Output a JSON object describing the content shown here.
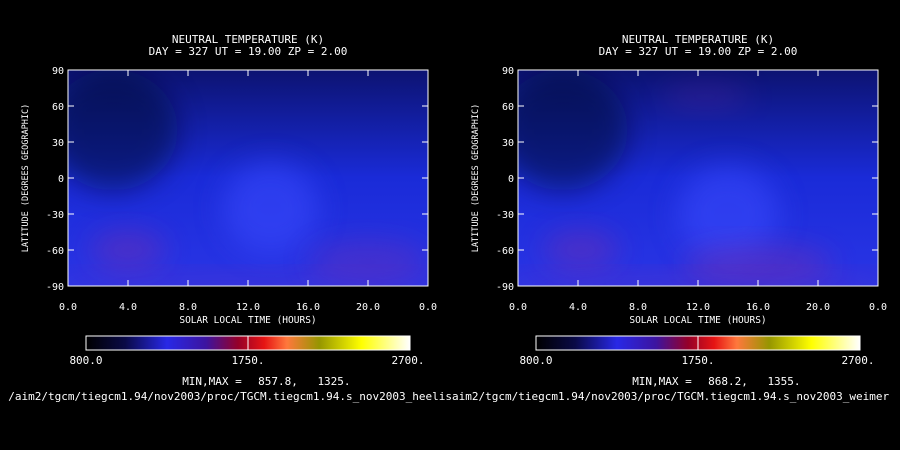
{
  "colors": {
    "background": "#000000",
    "text": "#ffffff"
  },
  "chart_data": [
    {
      "type": "heatmap",
      "title": "NEUTRAL TEMPERATURE (K)",
      "subtitle": "DAY = 327  UT = 19.00  ZP =    2.00",
      "xlabel": "SOLAR LOCAL TIME (HOURS)",
      "ylabel": "LATITUDE (DEGREES GEOGRAPHIC)",
      "x_ticks": [
        "0.0",
        "4.0",
        "8.0",
        "12.0",
        "16.0",
        "20.0",
        "0.0"
      ],
      "y_ticks": [
        "90",
        "60",
        "30",
        "0",
        "-30",
        "-60",
        "-90"
      ],
      "xlim": [
        0,
        24
      ],
      "ylim": [
        -90,
        90
      ],
      "colorbar": {
        "min_label": "800.0",
        "mid_label": "1750.",
        "max_label": "2700.",
        "range": [
          800,
          2700
        ]
      },
      "minmax_label": "MIN,MAX =",
      "min_value": "857.8,",
      "max_value": "1325.",
      "min": 857.8,
      "max": 1325,
      "filepath": "/aim2/tgcm/tiegcm1.94/nov2003/proc/TGCM.tiegcm1.94.s_nov2003_heelis",
      "field_blobs": [
        {
          "slt": 13.5,
          "lat": -25,
          "slt_spread": 3.2,
          "lat_spread": 38,
          "strength": 0.55
        },
        {
          "slt": 4.0,
          "lat": -60,
          "slt_spread": 2.5,
          "lat_spread": 16,
          "strength": 0.45
        },
        {
          "slt": 20.0,
          "lat": -70,
          "slt_spread": 4.0,
          "lat_spread": 18,
          "strength": 0.35
        },
        {
          "slt": 12.0,
          "lat": -88,
          "slt_spread": 14.0,
          "lat_spread": 8,
          "strength": 0.25
        }
      ]
    },
    {
      "type": "heatmap",
      "title": "NEUTRAL TEMPERATURE (K)",
      "subtitle": "DAY = 327  UT = 19.00  ZP =    2.00",
      "xlabel": "SOLAR LOCAL TIME (HOURS)",
      "ylabel": "LATITUDE (DEGREES GEOGRAPHIC)",
      "x_ticks": [
        "0.0",
        "4.0",
        "8.0",
        "12.0",
        "16.0",
        "20.0",
        "0.0"
      ],
      "y_ticks": [
        "90",
        "60",
        "30",
        "0",
        "-30",
        "-60",
        "-90"
      ],
      "xlim": [
        0,
        24
      ],
      "ylim": [
        -90,
        90
      ],
      "colorbar": {
        "min_label": "800.0",
        "mid_label": "1750.",
        "max_label": "2700.",
        "range": [
          800,
          2700
        ]
      },
      "minmax_label": "MIN,MAX =",
      "min_value": "868.2,",
      "max_value": "1355.",
      "min": 868.2,
      "max": 1355,
      "filepath": "aim2/tgcm/tiegcm1.94/nov2003/proc/TGCM.tiegcm1.94.s_nov2003_weimer",
      "field_blobs": [
        {
          "slt": 14.0,
          "lat": -30,
          "slt_spread": 3.4,
          "lat_spread": 40,
          "strength": 0.55
        },
        {
          "slt": 4.2,
          "lat": -60,
          "slt_spread": 2.5,
          "lat_spread": 16,
          "strength": 0.45
        },
        {
          "slt": 16.0,
          "lat": -72,
          "slt_spread": 5.0,
          "lat_spread": 16,
          "strength": 0.45
        },
        {
          "slt": 12.5,
          "lat": 68,
          "slt_spread": 3.0,
          "lat_spread": 10,
          "strength": 0.25
        },
        {
          "slt": 12.0,
          "lat": -88,
          "slt_spread": 14.0,
          "lat_spread": 8,
          "strength": 0.3
        }
      ]
    }
  ]
}
